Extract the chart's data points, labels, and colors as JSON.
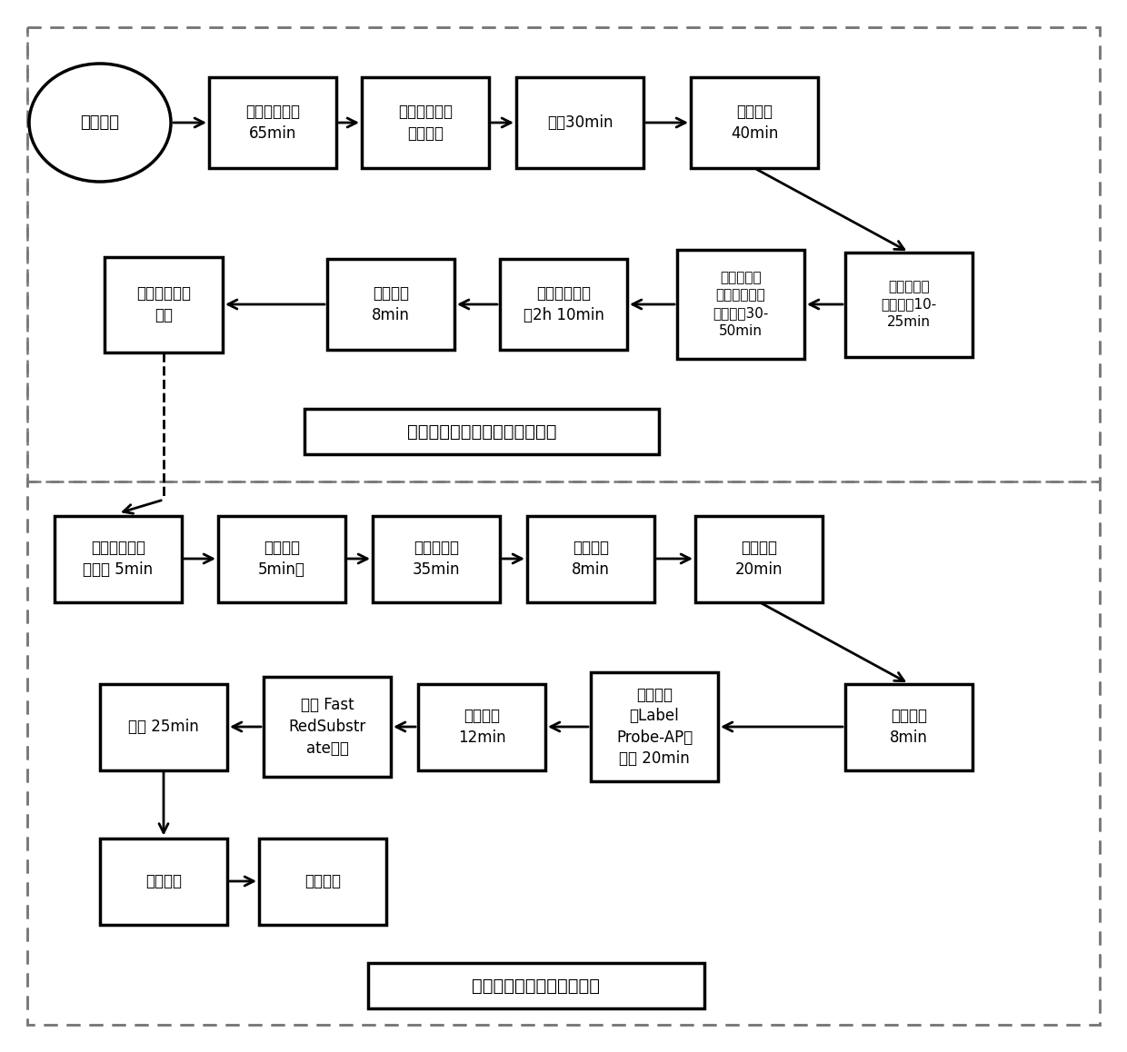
{
  "background_color": "#ffffff",
  "section1_label": "第一部分：组织处理及靶标杂交",
  "section2_label": "第二部分：信号放大和检测",
  "part1_row1": [
    {
      "id": "start",
      "label": "实验开始",
      "shape": "circle"
    },
    {
      "id": "b1",
      "label": "组织切片烘烤\n65min",
      "shape": "rect"
    },
    {
      "id": "b2",
      "label": "溶液、试剂、\n设备准备",
      "shape": "rect"
    },
    {
      "id": "b3",
      "label": "脱蜡30min",
      "shape": "rect"
    },
    {
      "id": "b4",
      "label": "面疏水线\n40min",
      "shape": "rect"
    }
  ],
  "part1_row2": [
    {
      "id": "b9",
      "label": "实验中断（可\n选）",
      "shape": "rect"
    },
    {
      "id": "b8",
      "label": "冲洗玻片\n8min",
      "shape": "rect"
    },
    {
      "id": "b7",
      "label": "目标探针组杂\n交2h 10min",
      "shape": "rect"
    },
    {
      "id": "b6",
      "label": "参考最佳时\n间，蛋白酶消\n化和固定30-\n50min",
      "shape": "rect"
    },
    {
      "id": "b5",
      "label": "参照最优时\n侧，预热10-\n25min",
      "shape": "rect"
    }
  ],
  "part2_row1": [
    {
      "id": "c1",
      "label": "准备其他溶液\n和试剂 5min",
      "shape": "rect"
    },
    {
      "id": "c2",
      "label": "冲洗玻片\n5min，",
      "shape": "rect"
    },
    {
      "id": "c3",
      "label": "预放大杂交\n35min",
      "shape": "rect"
    },
    {
      "id": "c4",
      "label": "冲洗玻片\n8min",
      "shape": "rect"
    },
    {
      "id": "c5",
      "label": "放大杂交\n20min",
      "shape": "rect"
    }
  ],
  "part2_row2": [
    {
      "id": "c10",
      "label": "复染 25min",
      "shape": "rect"
    },
    {
      "id": "c9",
      "label": "使用 Fast\nRedSubstr\nate显色",
      "shape": "rect"
    },
    {
      "id": "c8",
      "label": "冲洗玻片\n12min",
      "shape": "rect"
    },
    {
      "id": "c7",
      "label": "标记探针\n（Label\nProbe-AP）\n杂交 20min",
      "shape": "rect"
    },
    {
      "id": "c6",
      "label": "冲洗玻片\n8min",
      "shape": "rect"
    }
  ],
  "part2_row3": [
    {
      "id": "c11",
      "label": "图像报告",
      "shape": "rect"
    },
    {
      "id": "c12",
      "label": "结束实验",
      "shape": "rect"
    }
  ]
}
